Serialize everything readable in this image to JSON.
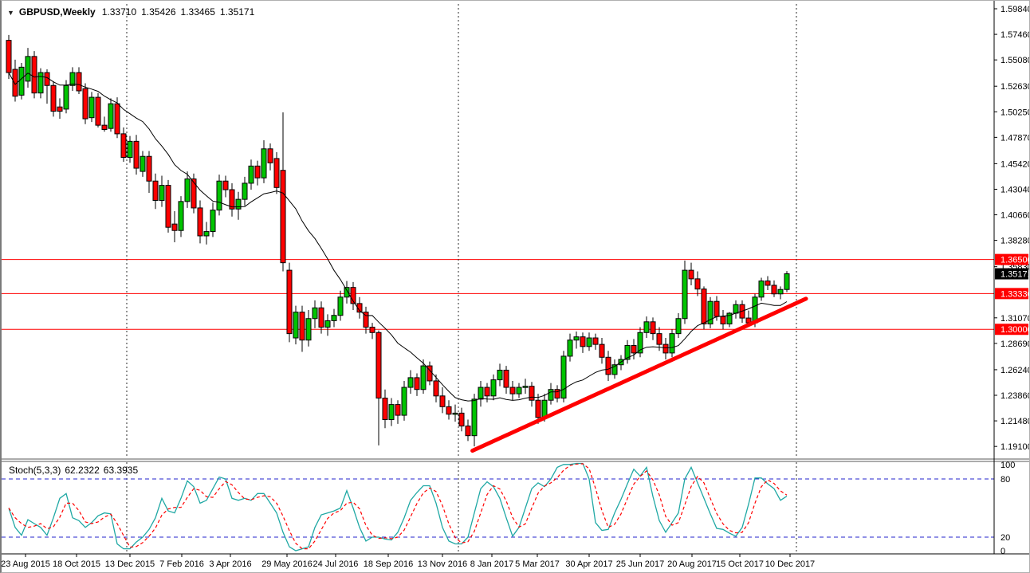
{
  "window": {
    "dropdown_icon": "▼",
    "symbol_label": "GBPUSD,Weekly",
    "quote_open": "1.33710",
    "quote_high": "1.35426",
    "quote_low": "1.33465",
    "quote_close": "1.35171"
  },
  "indicator_panel": {
    "label": "Stoch(5,3,3)",
    "main_value": "62.2322",
    "signal_value": "63.3935"
  },
  "colors": {
    "background": "#ffffff",
    "up_candle": "#00c400",
    "down_candle": "#ff0000",
    "candle_border": "#000000",
    "ma_line": "#000000",
    "trendline": "#ff0000",
    "hline": "#ff0000",
    "badge_level_bg": "#ff0000",
    "badge_current_bg": "#000000",
    "badge_text": "#ffffff",
    "stoch_main": "#1fa8a4",
    "stoch_signal": "#ff0000",
    "stoch_level": "#2323cd",
    "separator": "#2a2a2a",
    "axis_text": "#000000",
    "axis_border": "#000000",
    "panel_divider": "#5a5a5a"
  },
  "chart_data": {
    "type": "candlestick",
    "title": "GBPUSD Weekly with Stochastic(5,3,3)",
    "symbol": "GBPUSD",
    "timeframe": "Weekly",
    "price_range_top": 1.5984,
    "price_range_bottom": 1.191,
    "price_axis_labels": [
      1.5984,
      1.5746,
      1.5508,
      1.5263,
      1.5025,
      1.4787,
      1.4542,
      1.4304,
      1.4066,
      1.3828,
      1.3583,
      1.3107,
      1.2869,
      1.2624,
      1.2386,
      1.2148,
      1.191
    ],
    "hlines": [
      {
        "price": 1.365,
        "label": "1.36500"
      },
      {
        "price": 1.3333,
        "label": "1.33330"
      },
      {
        "price": 1.3,
        "label": "1.30000"
      }
    ],
    "current_price": {
      "price": 1.35171,
      "label": "1.35171"
    },
    "x_tick_labels": [
      "23 Aug 2015",
      "18 Oct 2015",
      "13 Dec 2015",
      "7 Feb 2016",
      "3 Apr 2016",
      "29 May 2016",
      "24 Jul 2016",
      "18 Sep 2016",
      "13 Nov 2016",
      "8 Jan 2017",
      "5 Mar 2017",
      "30 Apr 2017",
      "25 Jun 2017",
      "20 Aug 2017",
      "15 Oct 2017",
      "10 Dec 2017"
    ],
    "x_tick_positions": [
      30,
      94,
      161,
      226,
      287,
      358,
      419,
      485,
      553,
      615,
      672,
      737,
      801,
      866,
      926,
      989
    ],
    "year_separator_indices": [
      18.5,
      70.5,
      123.5
    ],
    "ma_period": 13,
    "trendline": {
      "from_index": 72.7,
      "from_price": 1.187,
      "to_index": 125.0,
      "to_price": 1.3285
    },
    "candles": [
      [
        1.569,
        1.574,
        1.533,
        1.539
      ],
      [
        1.542,
        1.551,
        1.512,
        1.517
      ],
      [
        1.518,
        1.548,
        1.514,
        1.544
      ],
      [
        1.531,
        1.562,
        1.525,
        1.554
      ],
      [
        1.554,
        1.559,
        1.515,
        1.52
      ],
      [
        1.52,
        1.543,
        1.515,
        1.539
      ],
      [
        1.539,
        1.542,
        1.51,
        1.527
      ],
      [
        1.527,
        1.531,
        1.498,
        1.503
      ],
      [
        1.507,
        1.515,
        1.496,
        1.503
      ],
      [
        1.505,
        1.532,
        1.501,
        1.527
      ],
      [
        1.527,
        1.544,
        1.522,
        1.539
      ],
      [
        1.539,
        1.544,
        1.519,
        1.522
      ],
      [
        1.524,
        1.529,
        1.491,
        1.496
      ],
      [
        1.497,
        1.521,
        1.493,
        1.516
      ],
      [
        1.516,
        1.52,
        1.488,
        1.49
      ],
      [
        1.49,
        1.498,
        1.484,
        1.486
      ],
      [
        1.487,
        1.515,
        1.484,
        1.51
      ],
      [
        1.51,
        1.516,
        1.478,
        1.482
      ],
      [
        1.482,
        1.488,
        1.456,
        1.46
      ],
      [
        1.46,
        1.48,
        1.455,
        1.475
      ],
      [
        1.475,
        1.481,
        1.444,
        1.45
      ],
      [
        1.447,
        1.466,
        1.442,
        1.461
      ],
      [
        1.461,
        1.466,
        1.427,
        1.438
      ],
      [
        1.438,
        1.445,
        1.412,
        1.42
      ],
      [
        1.42,
        1.443,
        1.414,
        1.434
      ],
      [
        1.434,
        1.439,
        1.39,
        1.395
      ],
      [
        1.398,
        1.41,
        1.381,
        1.392
      ],
      [
        1.392,
        1.424,
        1.386,
        1.419
      ],
      [
        1.419,
        1.447,
        1.413,
        1.44
      ],
      [
        1.44,
        1.445,
        1.408,
        1.413
      ],
      [
        1.413,
        1.42,
        1.38,
        1.387
      ],
      [
        1.387,
        1.4,
        1.379,
        1.391
      ],
      [
        1.391,
        1.418,
        1.386,
        1.411
      ],
      [
        1.411,
        1.444,
        1.406,
        1.438
      ],
      [
        1.438,
        1.443,
        1.423,
        1.43
      ],
      [
        1.43,
        1.436,
        1.405,
        1.412
      ],
      [
        1.412,
        1.428,
        1.402,
        1.421
      ],
      [
        1.421,
        1.442,
        1.415,
        1.436
      ],
      [
        1.436,
        1.458,
        1.43,
        1.452
      ],
      [
        1.452,
        1.457,
        1.434,
        1.441
      ],
      [
        1.441,
        1.476,
        1.436,
        1.468
      ],
      [
        1.468,
        1.473,
        1.448,
        1.455
      ],
      [
        1.459,
        1.465,
        1.426,
        1.432
      ],
      [
        1.448,
        1.502,
        1.354,
        1.362
      ],
      [
        1.355,
        1.362,
        1.288,
        1.296
      ],
      [
        1.292,
        1.322,
        1.286,
        1.316
      ],
      [
        1.316,
        1.322,
        1.279,
        1.29
      ],
      [
        1.29,
        1.318,
        1.284,
        1.31
      ],
      [
        1.31,
        1.327,
        1.301,
        1.32
      ],
      [
        1.32,
        1.326,
        1.296,
        1.302
      ],
      [
        1.302,
        1.314,
        1.294,
        1.308
      ],
      [
        1.308,
        1.319,
        1.302,
        1.313
      ],
      [
        1.313,
        1.336,
        1.308,
        1.33
      ],
      [
        1.33,
        1.345,
        1.324,
        1.339
      ],
      [
        1.339,
        1.344,
        1.318,
        1.324
      ],
      [
        1.324,
        1.33,
        1.31,
        1.316
      ],
      [
        1.316,
        1.321,
        1.296,
        1.302
      ],
      [
        1.302,
        1.306,
        1.291,
        1.297
      ],
      [
        1.297,
        1.299,
        1.192,
        1.236
      ],
      [
        1.236,
        1.244,
        1.208,
        1.216
      ],
      [
        1.216,
        1.236,
        1.21,
        1.23
      ],
      [
        1.23,
        1.234,
        1.212,
        1.22
      ],
      [
        1.22,
        1.252,
        1.215,
        1.246
      ],
      [
        1.246,
        1.262,
        1.24,
        1.255
      ],
      [
        1.255,
        1.259,
        1.238,
        1.244
      ],
      [
        1.244,
        1.272,
        1.24,
        1.266
      ],
      [
        1.266,
        1.27,
        1.248,
        1.252
      ],
      [
        1.252,
        1.258,
        1.232,
        1.238
      ],
      [
        1.238,
        1.246,
        1.222,
        1.228
      ],
      [
        1.228,
        1.234,
        1.216,
        1.221
      ],
      [
        1.221,
        1.23,
        1.214,
        1.222
      ],
      [
        1.222,
        1.227,
        1.205,
        1.21
      ],
      [
        1.21,
        1.216,
        1.196,
        1.201
      ],
      [
        1.201,
        1.24,
        1.191,
        1.235
      ],
      [
        1.235,
        1.252,
        1.228,
        1.246
      ],
      [
        1.246,
        1.25,
        1.232,
        1.238
      ],
      [
        1.238,
        1.258,
        1.234,
        1.253
      ],
      [
        1.253,
        1.268,
        1.247,
        1.262
      ],
      [
        1.262,
        1.266,
        1.24,
        1.246
      ],
      [
        1.246,
        1.252,
        1.234,
        1.24
      ],
      [
        1.24,
        1.25,
        1.236,
        1.246
      ],
      [
        1.246,
        1.254,
        1.24,
        1.247
      ],
      [
        1.247,
        1.251,
        1.228,
        1.234
      ],
      [
        1.234,
        1.24,
        1.212,
        1.218
      ],
      [
        1.218,
        1.24,
        1.214,
        1.234
      ],
      [
        1.234,
        1.25,
        1.23,
        1.244
      ],
      [
        1.244,
        1.248,
        1.232,
        1.236
      ],
      [
        1.236,
        1.28,
        1.232,
        1.275
      ],
      [
        1.275,
        1.296,
        1.27,
        1.29
      ],
      [
        1.29,
        1.298,
        1.282,
        1.293
      ],
      [
        1.293,
        1.297,
        1.278,
        1.284
      ],
      [
        1.284,
        1.297,
        1.28,
        1.292
      ],
      [
        1.292,
        1.296,
        1.281,
        1.286
      ],
      [
        1.286,
        1.292,
        1.268,
        1.274
      ],
      [
        1.274,
        1.28,
        1.252,
        1.258
      ],
      [
        1.258,
        1.272,
        1.254,
        1.267
      ],
      [
        1.267,
        1.276,
        1.262,
        1.272
      ],
      [
        1.272,
        1.29,
        1.268,
        1.285
      ],
      [
        1.285,
        1.291,
        1.272,
        1.278
      ],
      [
        1.278,
        1.302,
        1.274,
        1.297
      ],
      [
        1.297,
        1.312,
        1.292,
        1.307
      ],
      [
        1.307,
        1.311,
        1.29,
        1.296
      ],
      [
        1.296,
        1.302,
        1.28,
        1.286
      ],
      [
        1.286,
        1.292,
        1.272,
        1.278
      ],
      [
        1.278,
        1.3,
        1.274,
        1.296
      ],
      [
        1.296,
        1.315,
        1.292,
        1.31
      ],
      [
        1.31,
        1.364,
        1.305,
        1.355
      ],
      [
        1.355,
        1.362,
        1.341,
        1.347
      ],
      [
        1.347,
        1.354,
        1.331,
        1.3375
      ],
      [
        1.3375,
        1.34,
        1.3,
        1.305
      ],
      [
        1.305,
        1.33,
        1.301,
        1.326
      ],
      [
        1.326,
        1.331,
        1.308,
        1.312
      ],
      [
        1.312,
        1.318,
        1.3,
        1.305
      ],
      [
        1.305,
        1.316,
        1.302,
        1.315
      ],
      [
        1.315,
        1.327,
        1.31,
        1.323
      ],
      [
        1.323,
        1.327,
        1.306,
        1.3105
      ],
      [
        1.3105,
        1.3175,
        1.303,
        1.306
      ],
      [
        1.306,
        1.333,
        1.302,
        1.33
      ],
      [
        1.33,
        1.348,
        1.3265,
        1.345
      ],
      [
        1.345,
        1.3495,
        1.3365,
        1.341
      ],
      [
        1.341,
        1.3455,
        1.33,
        1.333
      ],
      [
        1.333,
        1.34,
        1.328,
        1.3371
      ],
      [
        1.3371,
        1.35426,
        1.33465,
        1.35171
      ]
    ],
    "stochastic": {
      "name": "Stoch(5,3,3)",
      "levels": [
        80,
        20
      ],
      "axis_labels": [
        100,
        80,
        20,
        0
      ],
      "signal_period": 3,
      "main": [
        50,
        30,
        22,
        38,
        34,
        30,
        22,
        40,
        60,
        65,
        40,
        37,
        30,
        35,
        42,
        45,
        44,
        13,
        8,
        8,
        15,
        20,
        28,
        40,
        60,
        47,
        45,
        60,
        78,
        72,
        55,
        58,
        70,
        82,
        80,
        60,
        58,
        60,
        58,
        65,
        65,
        55,
        45,
        25,
        10,
        6,
        8,
        10,
        30,
        43,
        45,
        47,
        50,
        68,
        50,
        30,
        16,
        20,
        20,
        18,
        17,
        25,
        40,
        58,
        66,
        73,
        73,
        55,
        30,
        16,
        13,
        13,
        20,
        45,
        70,
        77,
        72,
        60,
        40,
        21,
        30,
        50,
        70,
        76,
        72,
        80,
        92,
        95,
        95,
        96,
        96,
        80,
        35,
        27,
        28,
        45,
        59,
        75,
        90,
        83,
        92,
        62,
        37,
        25,
        35,
        45,
        80,
        92,
        76,
        60,
        44,
        29,
        28,
        24,
        21,
        30,
        54,
        81,
        81,
        75,
        70,
        57.95,
        62.2322
      ]
    }
  }
}
